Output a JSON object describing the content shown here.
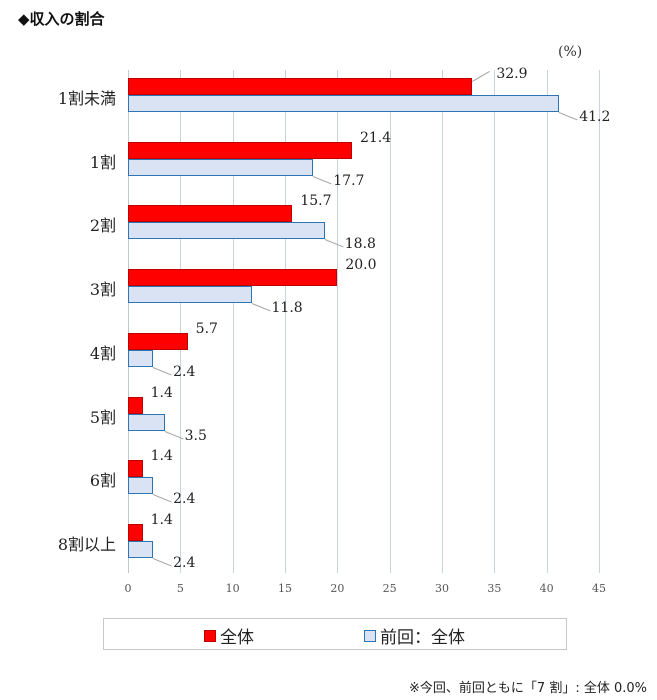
{
  "header": {
    "title": "◆収入の割合"
  },
  "chart_data": {
    "type": "bar",
    "orientation": "horizontal",
    "title": "収入の割合",
    "unit_label": "(%)",
    "categories": [
      "1割未満",
      "1割",
      "2割",
      "3割",
      "4割",
      "5割",
      "6割",
      "8割以上"
    ],
    "series": [
      {
        "name": "全体",
        "color": "#ff0000",
        "values": [
          32.9,
          21.4,
          15.7,
          20.0,
          5.7,
          1.4,
          1.4,
          1.4
        ]
      },
      {
        "name": "前回：全体",
        "color": "#dae3f3",
        "border": "#2e75b6",
        "values": [
          41.2,
          17.7,
          18.8,
          11.8,
          2.4,
          3.5,
          2.4,
          2.4
        ]
      }
    ],
    "value_labels": {
      "series0": [
        "32.9",
        "21.4",
        "15.7",
        "20.0",
        "5.7",
        "1.4",
        "1.4",
        "1.4"
      ],
      "series1": [
        "41.2",
        "17.7",
        "18.8",
        "11.8",
        "2.4",
        "3.5",
        "2.4",
        "2.4"
      ]
    },
    "xlim": [
      0,
      45
    ],
    "xticks": [
      "0",
      "5",
      "10",
      "15",
      "20",
      "25",
      "30",
      "35",
      "40",
      "45"
    ],
    "grid": true,
    "legend_position": "bottom",
    "xlabel": "",
    "ylabel": ""
  },
  "legend": {
    "items": [
      "全体",
      "前回：全体"
    ]
  },
  "footnote": "※今回、前回ともに「7 割」: 全体 0.0%"
}
